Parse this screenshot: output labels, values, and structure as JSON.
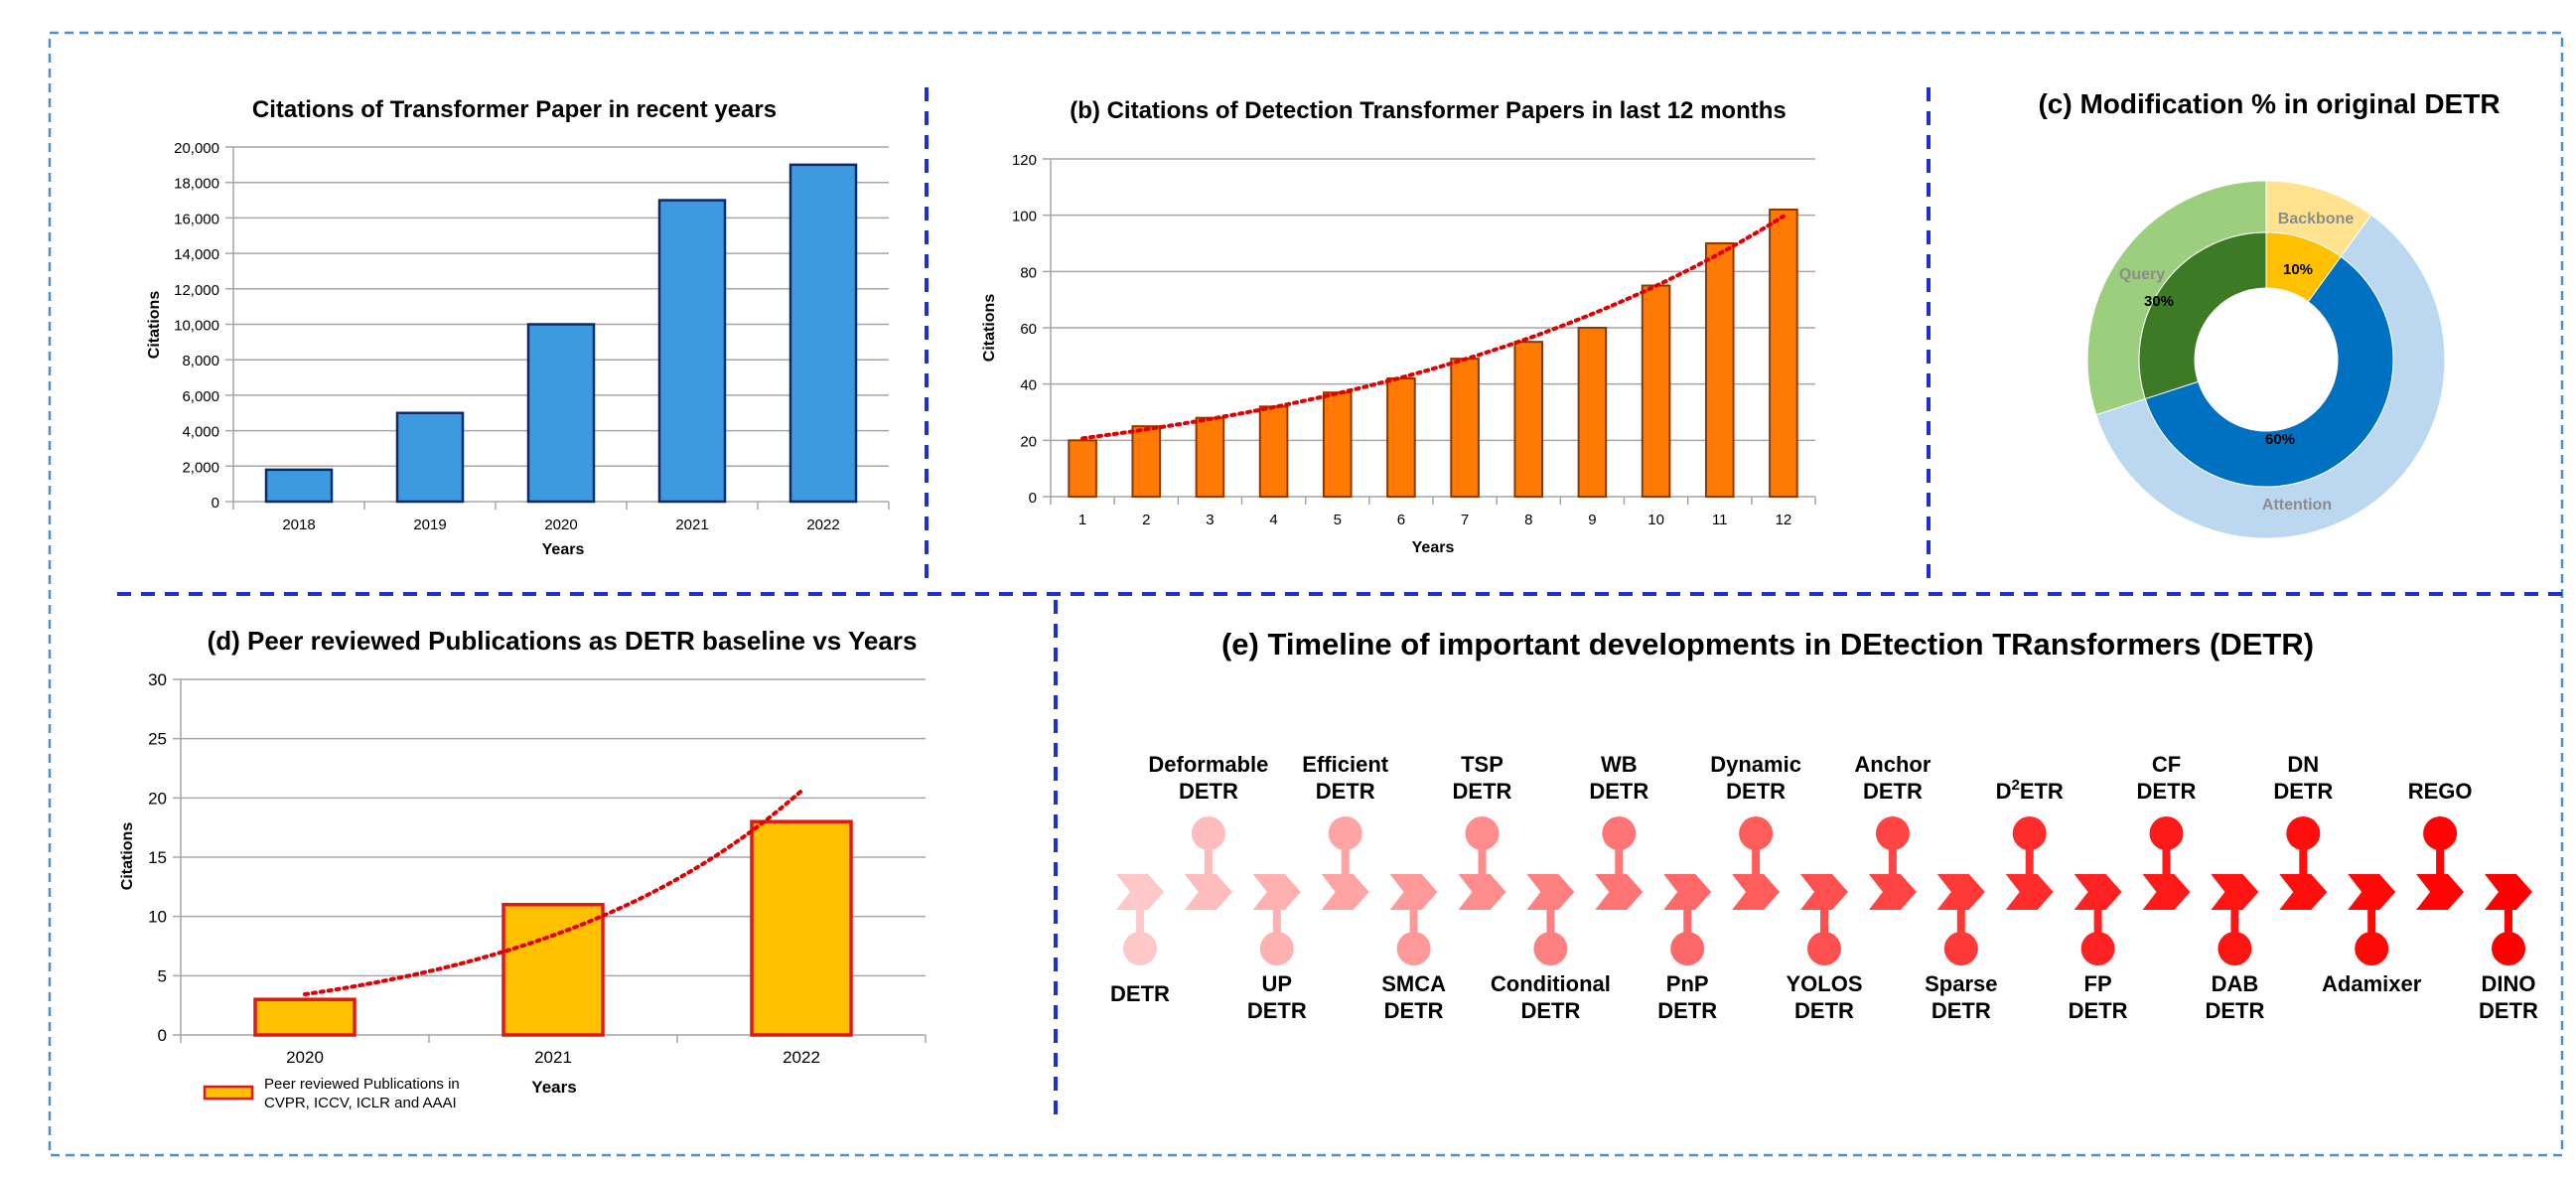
{
  "colors": {
    "frame": "#4a8fd0",
    "divider": "#1f2fd6",
    "gridline": "#a6a6a6",
    "bar_blue": "#3e9ade",
    "bar_blue_edge": "#0b2a6b",
    "bar_orange": "#ff7a05",
    "bar_orange_edge": "#8a3a00",
    "bar_yellow": "#ffc000",
    "bar_yellow_edge": "#e01818",
    "trend": "#e00000",
    "donut_backbone_outer": "#ffe38e",
    "donut_backbone_inner": "#ffc000",
    "donut_attention_outer": "#bcd8f0",
    "donut_attention_inner": "#0070c0",
    "donut_query_outer": "#9bcf7d",
    "donut_query_inner": "#3c7a26"
  },
  "chart_data": [
    {
      "id": "a",
      "type": "bar",
      "title": "Citations of Transformer Paper in recent years",
      "xlabel": "Years",
      "ylabel": "Citations",
      "categories": [
        "2018",
        "2019",
        "2020",
        "2021",
        "2022"
      ],
      "values": [
        1800,
        5000,
        10000,
        17000,
        19000
      ],
      "ylim": [
        0,
        20000
      ],
      "yticks": [
        "0",
        "2,000",
        "4,000",
        "6,000",
        "8,000",
        "10,000",
        "12,000",
        "14,000",
        "16,000",
        "18,000",
        "20,000"
      ],
      "grid": true
    },
    {
      "id": "b",
      "type": "bar",
      "title": "(b) Citations of Detection Transformer Papers in last 12 months",
      "xlabel": "Years",
      "ylabel": "Citations",
      "categories": [
        "1",
        "2",
        "3",
        "4",
        "5",
        "6",
        "7",
        "8",
        "9",
        "10",
        "11",
        "12"
      ],
      "values": [
        20,
        25,
        28,
        32,
        37,
        42,
        49,
        55,
        60,
        75,
        90,
        102
      ],
      "ylim": [
        0,
        120
      ],
      "yticks": [
        "0",
        "20",
        "40",
        "60",
        "80",
        "100",
        "120"
      ],
      "trendline": "exponential",
      "grid": true
    },
    {
      "id": "c",
      "type": "pie",
      "title": "(c) Modification % in original DETR",
      "slices": [
        {
          "label": "Backbone",
          "value": 10,
          "pct_label": "10%"
        },
        {
          "label": "Attention",
          "value": 60,
          "pct_label": "60%"
        },
        {
          "label": "Query",
          "value": 30,
          "pct_label": "30%"
        }
      ]
    },
    {
      "id": "d",
      "type": "bar",
      "title": "(d)  Peer reviewed Publications as DETR baseline vs Years",
      "xlabel": "Years",
      "ylabel": "Citations",
      "categories": [
        "2020",
        "2021",
        "2022"
      ],
      "values": [
        3,
        11,
        18
      ],
      "ylim": [
        0,
        30
      ],
      "yticks": [
        "0",
        "5",
        "10",
        "15",
        "20",
        "25",
        "30"
      ],
      "trendline": "exponential",
      "legend": {
        "line1": "Peer reviewed Publications in",
        "line2": "CVPR, ICCV, ICLR and AAAI",
        "placement": "bottom-left"
      },
      "grid": true
    }
  ],
  "timeline": {
    "title": "(e) Timeline of important developments in DEtection TRansformers (DETR)",
    "items": [
      {
        "pos": "bottom",
        "line1": "DETR",
        "line2": "",
        "color": "#ffc8c8"
      },
      {
        "pos": "top",
        "line1": "Deformable",
        "line2": "DETR",
        "color": "#ffbcbc"
      },
      {
        "pos": "bottom",
        "line1": "UP",
        "line2": "DETR",
        "color": "#ffb0b0"
      },
      {
        "pos": "top",
        "line1": "Efficient",
        "line2": "DETR",
        "color": "#ffa4a4"
      },
      {
        "pos": "bottom",
        "line1": "SMCA",
        "line2": "DETR",
        "color": "#ff9898"
      },
      {
        "pos": "top",
        "line1": "TSP",
        "line2": "DETR",
        "color": "#ff8c8c"
      },
      {
        "pos": "bottom",
        "line1": "Conditional",
        "line2": "DETR",
        "color": "#ff8080"
      },
      {
        "pos": "top",
        "line1": "WB",
        "line2": "DETR",
        "color": "#ff7474"
      },
      {
        "pos": "bottom",
        "line1": "PnP",
        "line2": "DETR",
        "color": "#ff6868"
      },
      {
        "pos": "top",
        "line1": "Dynamic",
        "line2": "DETR",
        "color": "#ff5c5c"
      },
      {
        "pos": "bottom",
        "line1": "YOLOS",
        "line2": "DETR",
        "color": "#ff5050"
      },
      {
        "pos": "top",
        "line1": "Anchor",
        "line2": "DETR",
        "color": "#ff4444"
      },
      {
        "pos": "bottom",
        "line1": "Sparse",
        "line2": "DETR",
        "color": "#ff3838"
      },
      {
        "pos": "top",
        "line1": "D",
        "sup": "2",
        "line1b": "ETR",
        "line2": "",
        "color": "#ff2c2c"
      },
      {
        "pos": "bottom",
        "line1": "FP",
        "line2": "DETR",
        "color": "#ff2222"
      },
      {
        "pos": "top",
        "line1": "CF",
        "line2": "DETR",
        "color": "#ff1a1a"
      },
      {
        "pos": "bottom",
        "line1": "DAB",
        "line2": "DETR",
        "color": "#ff1414"
      },
      {
        "pos": "top",
        "line1": "DN",
        "line2": "DETR",
        "color": "#ff0e0e"
      },
      {
        "pos": "bottom",
        "line1": "Adamixer",
        "line2": "",
        "color": "#ff0808"
      },
      {
        "pos": "top",
        "line1": "REGO",
        "line2": "",
        "color": "#ff0404"
      },
      {
        "pos": "bottom",
        "line1": "DINO",
        "line2": "DETR",
        "color": "#ff0000"
      }
    ]
  }
}
